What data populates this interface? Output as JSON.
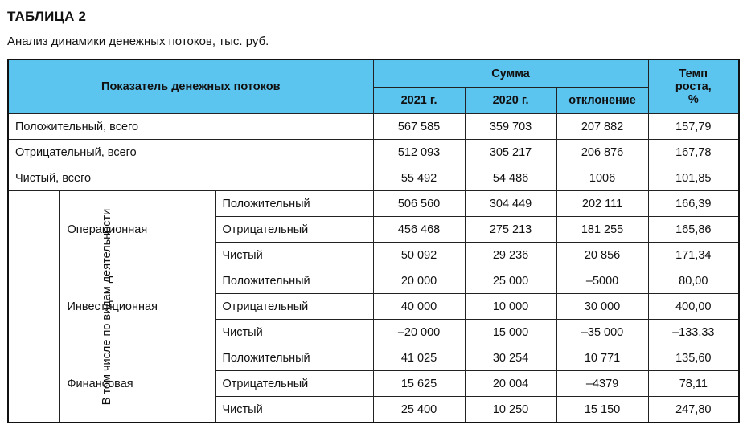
{
  "title": "ТАБЛИЦА 2",
  "subtitle": "Анализ динамики денежных потоков, тыс. руб.",
  "header": {
    "indicator": "Показатель денежных потоков",
    "sum": "Сумма",
    "growth": "Темп роста, %",
    "y2021": "2021 г.",
    "y2020": "2020 г.",
    "deviation": "отклонение"
  },
  "summary_rows": [
    {
      "label": "Положительный, всего",
      "v2021": "567 585",
      "v2020": "359 703",
      "dev": "207 882",
      "growth": "157,79"
    },
    {
      "label": "Отрицательный, всего",
      "v2021": "512 093",
      "v2020": "305 217",
      "dev": "206 876",
      "growth": "167,78"
    },
    {
      "label": "Чистый, всего",
      "v2021": "55 492",
      "v2020": "54 486",
      "dev": "1006",
      "growth": "101,85"
    }
  ],
  "vertical_label": "В том числе по видам деятельности",
  "groups": [
    {
      "name": "Операционная",
      "rows": [
        {
          "label": "Положительный",
          "v2021": "506 560",
          "v2020": "304 449",
          "dev": "202 111",
          "growth": "166,39"
        },
        {
          "label": "Отрицательный",
          "v2021": "456 468",
          "v2020": "275 213",
          "dev": "181 255",
          "growth": "165,86"
        },
        {
          "label": "Чистый",
          "v2021": "50 092",
          "v2020": "29 236",
          "dev": "20 856",
          "growth": "171,34"
        }
      ]
    },
    {
      "name": "Инвестиционная",
      "rows": [
        {
          "label": "Положительный",
          "v2021": "20 000",
          "v2020": "25 000",
          "dev": "–5000",
          "growth": "80,00"
        },
        {
          "label": "Отрицательный",
          "v2021": "40 000",
          "v2020": "10 000",
          "dev": "30 000",
          "growth": "400,00"
        },
        {
          "label": "Чистый",
          "v2021": "–20 000",
          "v2020": "15 000",
          "dev": "–35 000",
          "growth": "–133,33"
        }
      ]
    },
    {
      "name": "Финансовая",
      "rows": [
        {
          "label": "Положительный",
          "v2021": "41 025",
          "v2020": "30 254",
          "dev": "10 771",
          "growth": "135,60"
        },
        {
          "label": "Отрицательный",
          "v2021": "15 625",
          "v2020": "20 004",
          "dev": "–4379",
          "growth": "78,11"
        },
        {
          "label": "Чистый",
          "v2021": "25 400",
          "v2020": "10 250",
          "dev": "15 150",
          "growth": "247,80"
        }
      ]
    }
  ]
}
